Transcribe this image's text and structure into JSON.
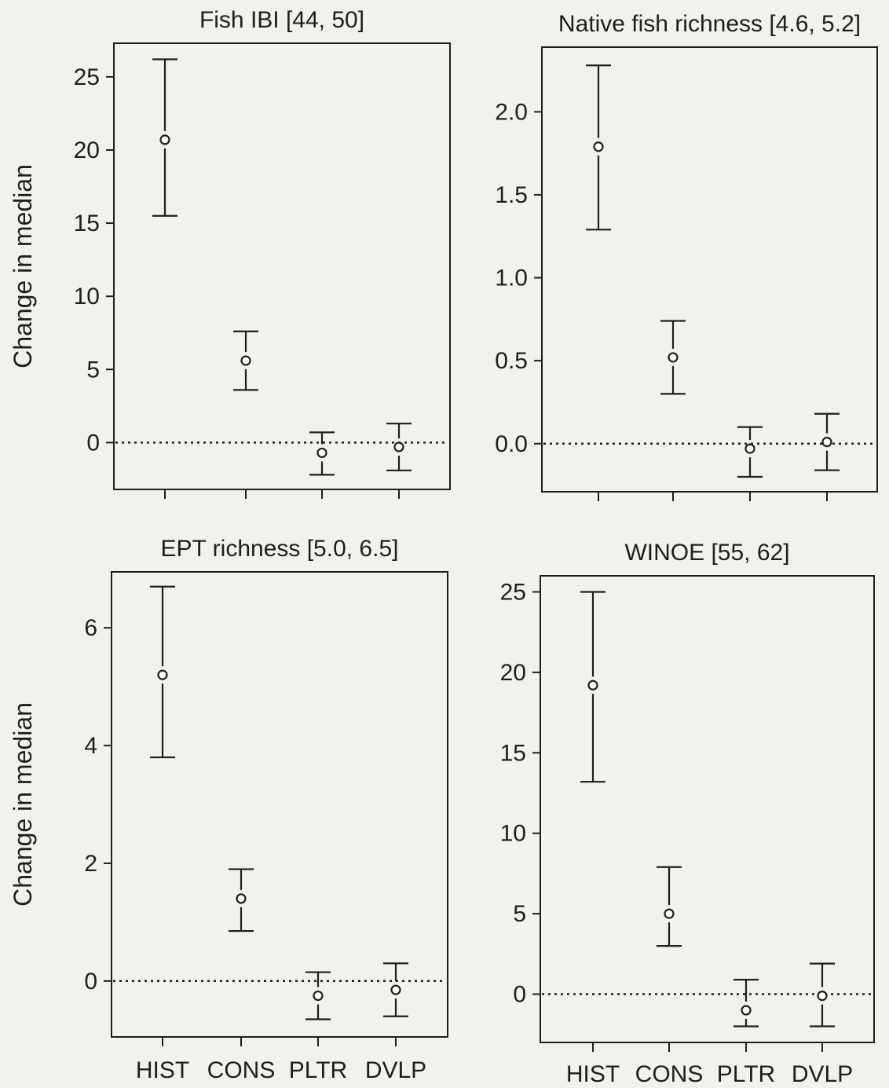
{
  "colors": {
    "background": "#f3f1ec",
    "ink": "#1e1e1e",
    "marker_fill": "#ffffff"
  },
  "chart_data": [
    {
      "type": "scatter",
      "title": "Fish IBI [44, 50]",
      "ylabel": "Change in median",
      "xlabel": "",
      "categories": [
        "HIST",
        "CONS",
        "PLTR",
        "DVLP"
      ],
      "median": [
        20.7,
        5.6,
        -0.7,
        -0.3
      ],
      "lower": [
        15.5,
        3.6,
        -2.2,
        -1.9
      ],
      "upper": [
        26.2,
        7.6,
        0.7,
        1.3
      ],
      "yticks": [
        0,
        5,
        10,
        15,
        20,
        25
      ],
      "ylim": [
        -3.2,
        27.3
      ],
      "reference_line": 0,
      "show_x_tick_labels": false
    },
    {
      "type": "scatter",
      "title": "Native fish richness [4.6, 5.2]",
      "ylabel": "",
      "xlabel": "",
      "categories": [
        "HIST",
        "CONS",
        "PLTR",
        "DVLP"
      ],
      "median": [
        1.79,
        0.52,
        -0.03,
        0.01
      ],
      "lower": [
        1.29,
        0.3,
        -0.2,
        -0.16
      ],
      "upper": [
        2.28,
        0.74,
        0.1,
        0.18
      ],
      "yticks": [
        0.0,
        0.5,
        1.0,
        1.5,
        2.0
      ],
      "ylim": [
        -0.29,
        2.39
      ],
      "reference_line": 0,
      "show_x_tick_labels": false
    },
    {
      "type": "scatter",
      "title": "EPT richness [5.0, 6.5]",
      "ylabel": "Change in median",
      "xlabel": "",
      "categories": [
        "HIST",
        "CONS",
        "PLTR",
        "DVLP"
      ],
      "median": [
        5.2,
        1.4,
        -0.25,
        -0.15
      ],
      "lower": [
        3.8,
        0.85,
        -0.65,
        -0.6
      ],
      "upper": [
        6.7,
        1.9,
        0.15,
        0.3
      ],
      "yticks": [
        0,
        2,
        4,
        6
      ],
      "ylim": [
        -0.95,
        6.95
      ],
      "reference_line": 0,
      "show_x_tick_labels": true
    },
    {
      "type": "scatter",
      "title": "WINOE [55, 62]",
      "ylabel": "",
      "xlabel": "",
      "categories": [
        "HIST",
        "CONS",
        "PLTR",
        "DVLP"
      ],
      "median": [
        19.2,
        5.0,
        -1.0,
        -0.1
      ],
      "lower": [
        13.2,
        3.0,
        -2.0,
        -2.0
      ],
      "upper": [
        25.0,
        7.9,
        0.9,
        1.9
      ],
      "yticks": [
        0,
        5,
        10,
        15,
        20,
        25
      ],
      "ylim": [
        -3.0,
        26.0
      ],
      "reference_line": 0,
      "show_x_tick_labels": true
    }
  ]
}
